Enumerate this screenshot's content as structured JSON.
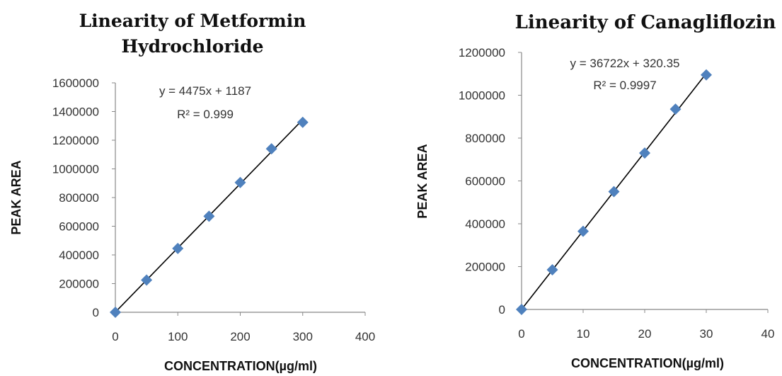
{
  "chart_data": [
    {
      "type": "scatter",
      "title_lines": [
        "Linearity of Metformin",
        "Hydrochloride"
      ],
      "xlabel": "CONCENTRATION(µg/ml)",
      "ylabel": "PEAK AREA",
      "xlim": [
        0,
        400
      ],
      "ylim": [
        0,
        1600000
      ],
      "x_ticks": [
        "0",
        "100",
        "200",
        "300",
        "400"
      ],
      "y_ticks": [
        "0",
        "200000",
        "400000",
        "600000",
        "800000",
        "1000000",
        "1200000",
        "1400000",
        "1600000"
      ],
      "grid": false,
      "marker_color": "#4F81BD",
      "trendline_color": "#000000",
      "series": [
        {
          "x": [
            0,
            50,
            100,
            150,
            200,
            250,
            300
          ],
          "y": [
            0,
            225000,
            445000,
            670000,
            905000,
            1140000,
            1325000
          ]
        }
      ],
      "trendline": {
        "slope": 4475,
        "intercept": 1187
      },
      "equation": "y = 4475x + 1187",
      "r2": "R² = 0.999"
    },
    {
      "type": "scatter",
      "title_lines": [
        "Linearity of Canagliflozin"
      ],
      "xlabel": "CONCENTRATION(µg/ml)",
      "ylabel": "PEAK AREA",
      "xlim": [
        0,
        40
      ],
      "ylim": [
        0,
        1200000
      ],
      "x_ticks": [
        "0",
        "10",
        "20",
        "30",
        "40"
      ],
      "y_ticks": [
        "0",
        "200000",
        "400000",
        "600000",
        "800000",
        "1000000",
        "1200000"
      ],
      "grid": false,
      "marker_color": "#4F81BD",
      "trendline_color": "#000000",
      "series": [
        {
          "x": [
            0,
            5,
            10,
            15,
            20,
            25,
            30
          ],
          "y": [
            0,
            185000,
            365000,
            550000,
            730000,
            935000,
            1095000
          ]
        }
      ],
      "trendline": {
        "slope": 36722,
        "intercept": 320.35
      },
      "equation": "y = 36722x + 320.35",
      "r2": "R² = 0.9997"
    }
  ]
}
